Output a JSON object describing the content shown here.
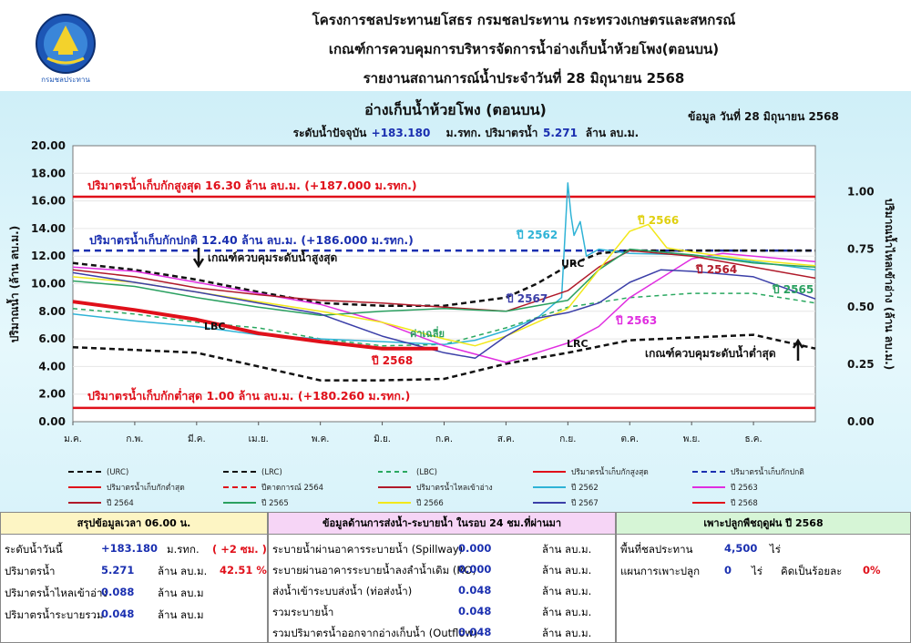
{
  "header": {
    "line1": "โครงการชลประทานยโสธร กรมชลประทาน กระทรวงเกษตรและสหกรณ์",
    "line2": "เกณฑ์การควบคุมการบริหารจัดการน้ำอ่างเก็บน้ำห้วยโพง(ตอนบน)",
    "line3": "รายงานสถานการณ์น้ำประจำวันที่ 28 มิถุนายน 2568",
    "logo_text": "กรมชลประทาน"
  },
  "chart_data": {
    "type": "line",
    "title": "อ่างเก็บน้ำห้วยโพง (ตอนบน)",
    "subtitle_prefix": "ระดับน้ำปัจจุบัน",
    "subtitle_level": "+183.180",
    "subtitle_mid": "ม.รทก.   ปริมาตรน้ำ",
    "subtitle_volume": "5.271",
    "subtitle_unit": "ล้าน ลบ.ม.",
    "data_date": "ข้อมูล วันที่  28 มิถุนายน 2568",
    "ylabel": "ปริมาณน้ำ (ล้าน ลบ.ม.)",
    "y2label": "ปริมาณน้ำไหลเข้าอ่าง (ล้าน ลบ.ม.)",
    "ylim": [
      0,
      20
    ],
    "y2lim": [
      0,
      1.2
    ],
    "yticks": [
      "0.00",
      "2.00",
      "4.00",
      "6.00",
      "8.00",
      "10.00",
      "12.00",
      "14.00",
      "16.00",
      "18.00",
      "20.00"
    ],
    "y2ticks": [
      "0.00",
      "0.25",
      "0.50",
      "0.75",
      "1.00"
    ],
    "months": [
      "ม.ค.",
      "ก.พ.",
      "มี.ค.",
      "เม.ย.",
      "พ.ค.",
      "มิ.ย.",
      "ก.ค.",
      "ส.ค.",
      "ก.ย.",
      "ต.ค.",
      "พ.ย.",
      "ธ.ค."
    ],
    "annotations": {
      "max_storage": "ปริมาตรน้ำเก็บกักสูงสุด  16.30  ล้าน ลบ.ม. (+187.000 ม.รทก.)",
      "normal_storage": "ปริมาตรน้ำเก็บกักปกติ 12.40 ล้าน ลบ.ม. (+186.000 ม.รทก.)",
      "min_storage": "ปริมาตรน้ำเก็บกักต่ำสุด 1.00 ล้าน ลบ.ม. (+180.260 ม.รทก.)",
      "upper_rule": "เกณฑ์ควบคุมระดับน้ำสูงสุด",
      "lower_rule": "เกณฑ์ควบคุมระดับน้ำต่ำสุด",
      "urc": "URC",
      "lrc": "LRC",
      "lbc": "LBC",
      "avg": "ค่าเฉลี่ย",
      "y2562": "ปี 2562",
      "y2563": "ปี 2563",
      "y2564": "ปี 2564",
      "y2565": "ปี 2565",
      "y2566": "ปี 2566",
      "y2567": "ปี 2567",
      "y2568": "ปี 2568"
    },
    "max_storage": 16.3,
    "normal_storage": 12.4,
    "min_storage": 1.0,
    "series": [
      {
        "name": "(URC)",
        "color": "#111111",
        "dash": "6,4",
        "width": 2.5,
        "x": [
          0,
          1,
          2,
          3,
          4,
          5,
          6,
          7,
          7.5,
          8,
          8.5,
          9,
          10,
          11,
          12
        ],
        "values": [
          11.5,
          11.0,
          10.3,
          9.4,
          8.6,
          8.4,
          8.4,
          9.0,
          10.0,
          11.3,
          12.2,
          12.4,
          12.4,
          12.4,
          12.4
        ]
      },
      {
        "name": "(LRC)",
        "color": "#111111",
        "dash": "6,4",
        "width": 2.5,
        "x": [
          0,
          1,
          2,
          3,
          4,
          5,
          6,
          7,
          8,
          9,
          10,
          11,
          12
        ],
        "values": [
          5.4,
          5.2,
          5.0,
          4.0,
          3.0,
          3.0,
          3.1,
          4.2,
          5.0,
          5.9,
          6.1,
          6.3,
          5.3
        ]
      },
      {
        "name": "(LBC)",
        "color": "#2aa860",
        "dash": "5,4",
        "width": 1.5,
        "x": [
          0,
          1,
          2,
          3,
          4,
          5,
          6,
          7,
          8,
          9,
          10,
          11,
          12
        ],
        "values": [
          8.2,
          7.8,
          7.2,
          6.8,
          6.0,
          5.5,
          5.6,
          6.8,
          8.3,
          9.0,
          9.3,
          9.3,
          8.6
        ]
      },
      {
        "name": "ปี 2562",
        "color": "#2fb3d6",
        "dash": "",
        "width": 1.5,
        "x": [
          0,
          1,
          2,
          3,
          4,
          5,
          6,
          6.5,
          7,
          7.5,
          7.9,
          8.0,
          8.05,
          8.1,
          8.2,
          8.3,
          8.5,
          9,
          10,
          11,
          12
        ],
        "values": [
          7.8,
          7.3,
          6.9,
          6.3,
          6.0,
          5.8,
          5.6,
          5.9,
          6.6,
          7.5,
          9.0,
          17.3,
          15.0,
          13.5,
          14.5,
          12.0,
          12.5,
          12.2,
          12.1,
          11.6,
          11.0
        ]
      },
      {
        "name": "ปี 2563",
        "color": "#e02ee0",
        "dash": "",
        "width": 1.5,
        "x": [
          0,
          1,
          2,
          3,
          4,
          5,
          6,
          7,
          7.5,
          8,
          8.5,
          9,
          10,
          10.5,
          11,
          12
        ],
        "values": [
          11.2,
          10.9,
          10.1,
          9.3,
          8.5,
          7.2,
          5.5,
          4.3,
          5.0,
          5.7,
          6.9,
          9.0,
          11.8,
          12.2,
          12.0,
          11.6
        ]
      },
      {
        "name": "ปี 2564",
        "color": "#b01a2a",
        "dash": "",
        "width": 1.5,
        "x": [
          0,
          1,
          2,
          3,
          4,
          5,
          6,
          7,
          8,
          8.5,
          9,
          10,
          11,
          12
        ],
        "values": [
          11.0,
          10.5,
          9.7,
          9.2,
          8.8,
          8.6,
          8.3,
          8.0,
          9.5,
          11.2,
          12.4,
          12.0,
          11.2,
          10.4
        ]
      },
      {
        "name": "ปี 2565",
        "color": "#2aa060",
        "dash": "",
        "width": 1.5,
        "x": [
          0,
          1,
          2,
          3,
          4,
          5,
          6,
          7,
          8,
          8.5,
          9,
          10,
          11,
          12
        ],
        "values": [
          10.2,
          9.8,
          9.0,
          8.3,
          7.7,
          8.0,
          8.2,
          8.0,
          8.8,
          11.0,
          12.5,
          12.1,
          11.5,
          11.2
        ]
      },
      {
        "name": "ปี 2566",
        "color": "#f2e81a",
        "dash": "",
        "width": 1.5,
        "x": [
          0,
          1,
          2,
          3,
          4,
          5,
          6,
          6.5,
          7,
          7.5,
          8,
          8.5,
          9,
          9.3,
          9.6,
          10,
          11,
          12
        ],
        "values": [
          10.5,
          10.1,
          9.4,
          8.7,
          8.0,
          7.2,
          6.0,
          5.5,
          6.2,
          7.2,
          8.2,
          11.0,
          13.8,
          14.3,
          12.6,
          12.3,
          11.7,
          11.3
        ]
      },
      {
        "name": "ปี 2567",
        "color": "#3b3fa8",
        "dash": "",
        "width": 1.5,
        "x": [
          0,
          1,
          2,
          3,
          4,
          5,
          6,
          6.5,
          7,
          7.5,
          8,
          8.5,
          9,
          9.5,
          10,
          11,
          12
        ],
        "values": [
          10.8,
          10.1,
          9.4,
          8.6,
          7.8,
          6.2,
          5.0,
          4.6,
          6.2,
          7.5,
          7.9,
          8.6,
          10.1,
          11.0,
          10.9,
          10.5,
          8.9
        ]
      },
      {
        "name": "ปี 2568",
        "color": "#e0101a",
        "dash": "",
        "width": 4,
        "x": [
          0,
          1,
          2,
          3,
          4,
          5,
          5.9
        ],
        "values": [
          8.7,
          8.1,
          7.4,
          6.4,
          5.8,
          5.3,
          5.3
        ]
      }
    ],
    "legend": [
      {
        "label": "(URC)",
        "color": "#111111",
        "dash": "6,4"
      },
      {
        "label": "(LRC)",
        "color": "#111111",
        "dash": "6,4"
      },
      {
        "label": "(LBC)",
        "color": "#2aa860",
        "dash": "5,4"
      },
      {
        "label": "ปริมาตรน้ำเก็บกักสูงสุด",
        "color": "#e0101a",
        "dash": ""
      },
      {
        "label": "ปริมาตรน้ำเก็บกักปกติ",
        "color": "#1a2fb0",
        "dash": "6,4"
      },
      {
        "label": "ปริมาตรน้ำเก็บกักต่ำสุด",
        "color": "#e0101a",
        "dash": ""
      },
      {
        "label": "ปีคาดการณ์ 2564",
        "color": "#e0101a",
        "dash": "6,4"
      },
      {
        "label": "ปริมาตรน้ำไหลเข้าอ่าง",
        "color": "#b01a2a",
        "dash": ""
      },
      {
        "label": "ปี 2562",
        "color": "#2fb3d6",
        "dash": ""
      },
      {
        "label": "ปี 2563",
        "color": "#e02ee0",
        "dash": ""
      },
      {
        "label": "ปี 2564",
        "color": "#b01a2a",
        "dash": ""
      },
      {
        "label": "ปี 2565",
        "color": "#2aa060",
        "dash": ""
      },
      {
        "label": "ปี 2566",
        "color": "#f2e81a",
        "dash": ""
      },
      {
        "label": "ปี 2567",
        "color": "#3b3fa8",
        "dash": ""
      },
      {
        "label": "ปี 2568",
        "color": "#e0101a",
        "dash": ""
      }
    ]
  },
  "summary": {
    "p1_title": "สรุปข้อมูลเวลา 06.00 น.",
    "p1_level_label": "ระดับน้ำวันนี้",
    "p1_level_value": "+183.180",
    "p1_level_unit": "ม.รทก.",
    "p1_level_change": "( +2 ซม. )",
    "p1_volume_label": "ปริมาตรน้ำ",
    "p1_volume_value": "5.271",
    "p1_volume_unit": "ล้าน ลบ.ม.",
    "p1_volume_pct": "42.51 %",
    "p1_inflow_label": "ปริมาตรน้ำไหลเข้าอ่าง",
    "p1_inflow_value": "0.088",
    "p1_inflow_unit": "ล้าน ลบ.ม",
    "p1_outflow_label": "ปริมาตรน้ำระบายรวม",
    "p1_outflow_value": "0.048",
    "p1_outflow_unit": "ล้าน ลบ.ม",
    "p2_title": "ข้อมูลด้านการส่งน้ำ-ระบายน้ำ ในรอบ 24 ชม.ที่ผ่านมา",
    "p2_rows": [
      {
        "label": "ระบายน้ำผ่านอาคารระบายน้ำ (Spillway)",
        "value": "0.000",
        "unit": "ล้าน ลบ.ม."
      },
      {
        "label": "ระบายผ่านอาคารระบายน้ำลงลำน้ำเดิม (RO)",
        "value": "0.000",
        "unit": "ล้าน ลบ.ม."
      },
      {
        "label": "ส่งน้ำเข้าระบบส่งน้ำ (ท่อส่งน้ำ)",
        "value": "0.048",
        "unit": "ล้าน ลบ.ม."
      },
      {
        "label": "รวมระบายน้ำ",
        "value": "0.048",
        "unit": "ล้าน ลบ.ม."
      },
      {
        "label": "รวมปริมาตรน้ำออกจากอ่างเก็บน้ำ (Outflow)",
        "value": "0.048",
        "unit": "ล้าน ลบ.ม."
      }
    ],
    "p3_title": "เพาะปลูกพืชฤดูฝน ปี 2568",
    "p3_area_label": "พื้นที่ชลประทาน",
    "p3_area_value": "4,500",
    "p3_area_unit": "ไร่",
    "p3_plan_label": "แผนการเพาะปลูก",
    "p3_plan_value": "0",
    "p3_plan_unit": "ไร่",
    "p3_pct_label": "คิดเป็นร้อยละ",
    "p3_pct_value": "0%"
  }
}
